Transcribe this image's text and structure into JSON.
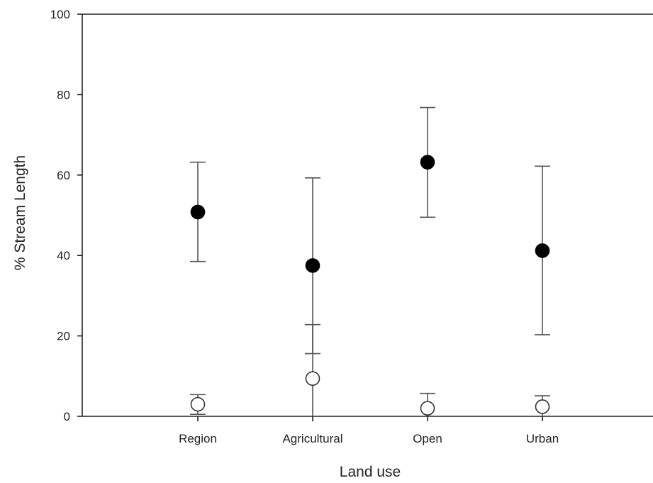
{
  "chart_data": {
    "type": "scatter",
    "title": "",
    "xlabel": "Land use",
    "ylabel": "% Stream Length",
    "categories": [
      "Region",
      "Agricultural",
      "Open",
      "Urban"
    ],
    "ylim": [
      0,
      100
    ],
    "yticks": [
      "0",
      "20",
      "40",
      "60",
      "80",
      "100"
    ],
    "grid": false,
    "legend": "none",
    "series": [
      {
        "marker": "filled-circle",
        "color": "#000000",
        "values": [
          50.8,
          37.5,
          63.2,
          41.2
        ],
        "error_low": [
          38.5,
          15.6,
          49.5,
          20.3
        ],
        "error_high": [
          63.2,
          59.3,
          76.8,
          62.2
        ]
      },
      {
        "marker": "open-circle",
        "color": "#ffffff",
        "values": [
          3.0,
          9.4,
          2.0,
          2.4
        ],
        "error_low": [
          0.5,
          0,
          0,
          0
        ],
        "error_high": [
          5.4,
          22.8,
          5.7,
          5.1
        ]
      }
    ]
  }
}
